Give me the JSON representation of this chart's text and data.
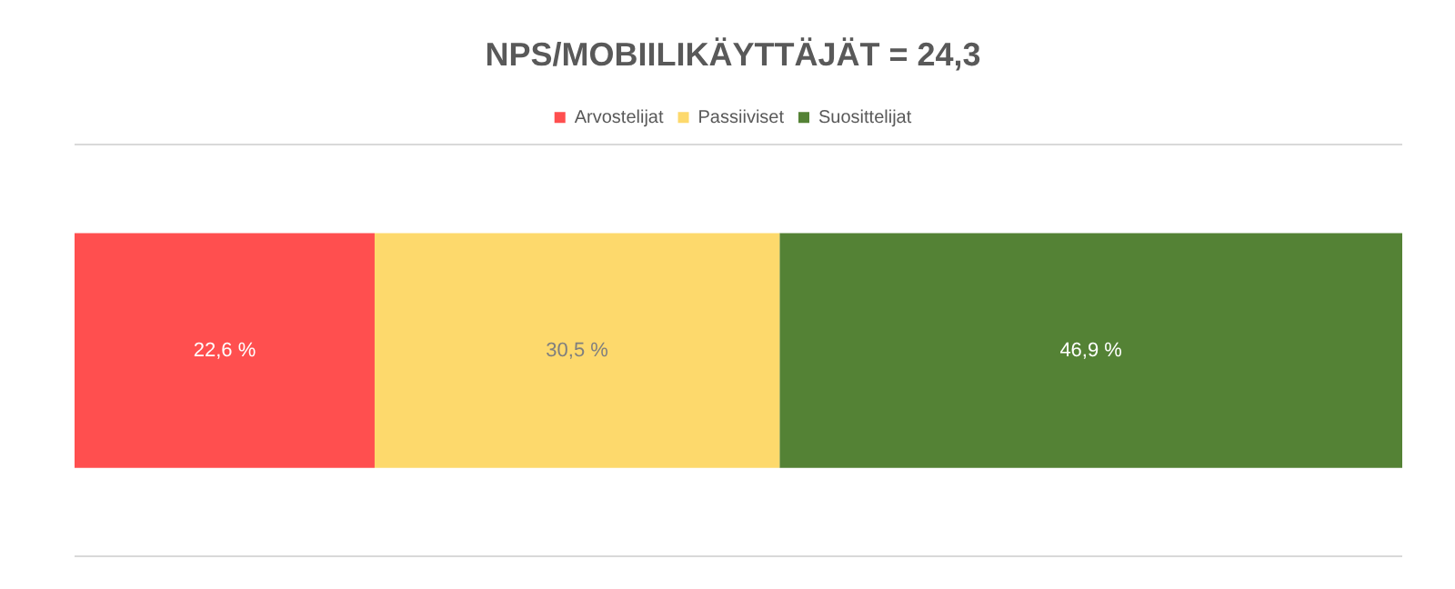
{
  "chart_data": {
    "type": "bar",
    "orientation": "horizontal",
    "stacked": true,
    "title": "NPS/MOBIILIKÄYTTÄJÄT = 24,3",
    "categories": [
      null
    ],
    "xlim": [
      0,
      100
    ],
    "legend": "top",
    "series": [
      {
        "name": "Arvostelijat",
        "color": "#ff4f4f",
        "values": [
          22.6
        ],
        "value_labels": [
          "22,6 %"
        ]
      },
      {
        "name": "Passiiviset",
        "color": "#fdd96c",
        "values": [
          30.5
        ],
        "value_labels": [
          "30,5 %"
        ]
      },
      {
        "name": "Suosittelijat",
        "color": "#548235",
        "values": [
          46.9
        ],
        "value_labels": [
          "46,9 %"
        ]
      }
    ]
  }
}
